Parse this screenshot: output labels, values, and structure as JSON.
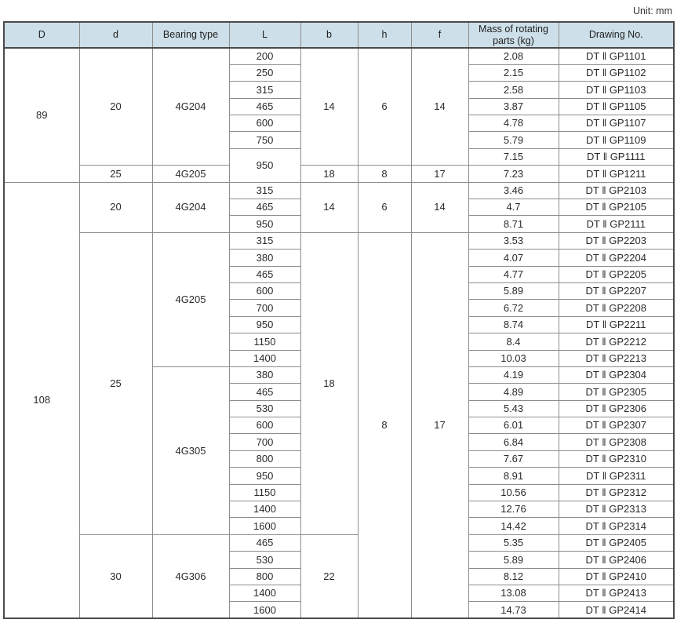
{
  "page": {
    "unit_label": "Unit: mm"
  },
  "colors": {
    "header_bg": "#cddfe8",
    "border_inner": "#8d8d8d",
    "border_outer": "#4a4a4a",
    "text": "#2b2b2b"
  },
  "table": {
    "columns": [
      {
        "key": "D",
        "label": "D"
      },
      {
        "key": "d",
        "label": "d"
      },
      {
        "key": "bearing-type",
        "label": "Bearing type"
      },
      {
        "key": "L",
        "label": "L"
      },
      {
        "key": "b",
        "label": "b"
      },
      {
        "key": "h",
        "label": "h"
      },
      {
        "key": "f",
        "label": "f"
      },
      {
        "key": "mass",
        "label": "Mass of rotating parts (kg)"
      },
      {
        "key": "drawing-no",
        "label": "Drawing No."
      }
    ],
    "rows": [
      [
        {
          "t": "89",
          "rs": 8
        },
        {
          "t": "20",
          "rs": 7
        },
        {
          "t": "4G204",
          "rs": 7
        },
        {
          "t": "200"
        },
        {
          "t": "14",
          "rs": 7
        },
        {
          "t": "6",
          "rs": 7
        },
        {
          "t": "14",
          "rs": 7
        },
        {
          "t": "2.08"
        },
        {
          "t": "DT ‖ GP1101"
        }
      ],
      [
        {
          "t": "250"
        },
        {
          "t": "2.15"
        },
        {
          "t": "DT ‖ GP1102"
        }
      ],
      [
        {
          "t": "315"
        },
        {
          "t": "2.58"
        },
        {
          "t": "DT ‖ GP1103"
        }
      ],
      [
        {
          "t": "465"
        },
        {
          "t": "3.87"
        },
        {
          "t": "DT ‖ GP1105"
        }
      ],
      [
        {
          "t": "600"
        },
        {
          "t": "4.78"
        },
        {
          "t": "DT ‖ GP1107"
        }
      ],
      [
        {
          "t": "750"
        },
        {
          "t": "5.79"
        },
        {
          "t": "DT ‖ GP1109"
        }
      ],
      [
        {
          "t": "950",
          "rs": 2
        },
        {
          "t": "7.15"
        },
        {
          "t": "DT ‖ GP1111"
        }
      ],
      [
        {
          "t": "25"
        },
        {
          "t": "4G205"
        },
        {
          "t": "18"
        },
        {
          "t": "8"
        },
        {
          "t": "17"
        },
        {
          "t": "7.23"
        },
        {
          "t": "DT ‖ GP1211"
        }
      ],
      [
        {
          "t": "108",
          "rs": 26
        },
        {
          "t": "20",
          "rs": 3
        },
        {
          "t": "4G204",
          "rs": 3
        },
        {
          "t": "315"
        },
        {
          "t": "14",
          "rs": 3
        },
        {
          "t": "6",
          "rs": 3
        },
        {
          "t": "14",
          "rs": 3
        },
        {
          "t": "3.46"
        },
        {
          "t": "DT ‖ GP2103"
        }
      ],
      [
        {
          "t": "465"
        },
        {
          "t": "4.7"
        },
        {
          "t": "DT ‖ GP2105"
        }
      ],
      [
        {
          "t": "950"
        },
        {
          "t": "8.71"
        },
        {
          "t": "DT ‖ GP2111"
        }
      ],
      [
        {
          "t": "25",
          "rs": 18
        },
        {
          "t": "4G205",
          "rs": 8
        },
        {
          "t": "315"
        },
        {
          "t": "18",
          "rs": 18
        },
        {
          "t": "8",
          "rs": 23
        },
        {
          "t": "17",
          "rs": 23
        },
        {
          "t": "3.53"
        },
        {
          "t": "DT ‖ GP2203"
        }
      ],
      [
        {
          "t": "380"
        },
        {
          "t": "4.07"
        },
        {
          "t": "DT ‖ GP2204"
        }
      ],
      [
        {
          "t": "465"
        },
        {
          "t": "4.77"
        },
        {
          "t": "DT ‖ GP2205"
        }
      ],
      [
        {
          "t": "600"
        },
        {
          "t": "5.89"
        },
        {
          "t": "DT ‖ GP2207"
        }
      ],
      [
        {
          "t": "700"
        },
        {
          "t": "6.72"
        },
        {
          "t": "DT ‖ GP2208"
        }
      ],
      [
        {
          "t": "950"
        },
        {
          "t": "8.74"
        },
        {
          "t": "DT ‖ GP2211"
        }
      ],
      [
        {
          "t": "1150"
        },
        {
          "t": "8.4"
        },
        {
          "t": "DT ‖ GP2212"
        }
      ],
      [
        {
          "t": "1400"
        },
        {
          "t": "10.03"
        },
        {
          "t": "DT ‖ GP2213"
        }
      ],
      [
        {
          "t": "4G305",
          "rs": 10
        },
        {
          "t": "380"
        },
        {
          "t": "4.19"
        },
        {
          "t": "DT ‖ GP2304"
        }
      ],
      [
        {
          "t": "465"
        },
        {
          "t": "4.89"
        },
        {
          "t": "DT ‖ GP2305"
        }
      ],
      [
        {
          "t": "530"
        },
        {
          "t": "5.43"
        },
        {
          "t": "DT ‖ GP2306"
        }
      ],
      [
        {
          "t": "600"
        },
        {
          "t": "6.01"
        },
        {
          "t": "DT ‖ GP2307"
        }
      ],
      [
        {
          "t": "700"
        },
        {
          "t": "6.84"
        },
        {
          "t": "DT ‖ GP2308"
        }
      ],
      [
        {
          "t": "800"
        },
        {
          "t": "7.67"
        },
        {
          "t": "DT ‖ GP2310"
        }
      ],
      [
        {
          "t": "950"
        },
        {
          "t": "8.91"
        },
        {
          "t": "DT ‖ GP2311"
        }
      ],
      [
        {
          "t": "1150"
        },
        {
          "t": "10.56"
        },
        {
          "t": "DT ‖ GP2312"
        }
      ],
      [
        {
          "t": "1400"
        },
        {
          "t": "12.76"
        },
        {
          "t": "DT ‖ GP2313"
        }
      ],
      [
        {
          "t": "1600"
        },
        {
          "t": "14.42"
        },
        {
          "t": "DT ‖ GP2314"
        }
      ],
      [
        {
          "t": "30",
          "rs": 5
        },
        {
          "t": "4G306",
          "rs": 5
        },
        {
          "t": "465"
        },
        {
          "t": "22",
          "rs": 5
        },
        {
          "t": "5.35"
        },
        {
          "t": "DT ‖ GP2405"
        }
      ],
      [
        {
          "t": "530"
        },
        {
          "t": "5.89"
        },
        {
          "t": "DT ‖ GP2406"
        }
      ],
      [
        {
          "t": "800"
        },
        {
          "t": "8.12"
        },
        {
          "t": "DT ‖ GP2410"
        }
      ],
      [
        {
          "t": "1400"
        },
        {
          "t": "13.08"
        },
        {
          "t": "DT ‖ GP2413"
        }
      ],
      [
        {
          "t": "1600"
        },
        {
          "t": "14.73"
        },
        {
          "t": "DT ‖ GP2414"
        }
      ]
    ]
  }
}
